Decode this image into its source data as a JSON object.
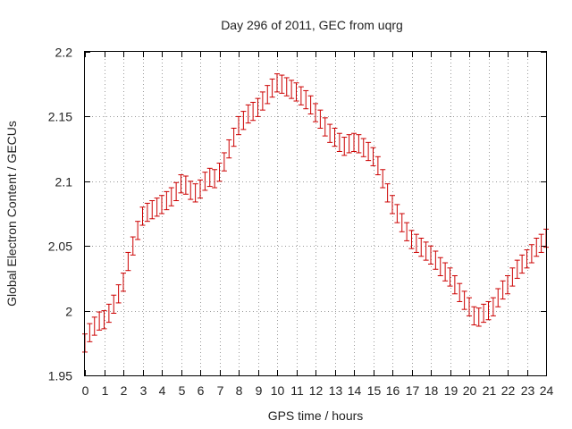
{
  "chart_data": {
    "type": "line",
    "title": "Day 296 of 2011, GEC from uqrg",
    "xlabel": "GPS time / hours",
    "ylabel": "Global Electron Content / GECUs",
    "xlim": [
      0,
      24
    ],
    "ylim": [
      1.95,
      2.2
    ],
    "x_ticks": [
      "0",
      "1",
      "2",
      "3",
      "4",
      "5",
      "6",
      "7",
      "8",
      "9",
      "10",
      "11",
      "12",
      "13",
      "14",
      "15",
      "16",
      "17",
      "18",
      "19",
      "20",
      "21",
      "22",
      "23",
      "24"
    ],
    "y_ticks": [
      "1.95",
      "2",
      "2.05",
      "2.1",
      "2.15",
      "2.2"
    ],
    "grid": true,
    "legend": "none",
    "color": "#cc0000",
    "error_bar": 0.007,
    "series": [
      {
        "x": [
          0,
          0.25,
          0.5,
          0.75,
          1,
          1.25,
          1.5,
          1.75,
          2,
          2.25,
          2.5,
          2.75,
          3,
          3.25,
          3.5,
          3.75,
          4,
          4.25,
          4.5,
          4.75,
          5,
          5.25,
          5.5,
          5.75,
          6,
          6.25,
          6.5,
          6.75,
          7,
          7.25,
          7.5,
          7.75,
          8,
          8.25,
          8.5,
          8.75,
          9,
          9.25,
          9.5,
          9.75,
          10,
          10.25,
          10.5,
          10.75,
          11,
          11.25,
          11.5,
          11.75,
          12,
          12.25,
          12.5,
          12.75,
          13,
          13.25,
          13.5,
          13.75,
          14,
          14.25,
          14.5,
          14.75,
          15,
          15.25,
          15.5,
          15.75,
          16,
          16.25,
          16.5,
          16.75,
          17,
          17.25,
          17.5,
          17.75,
          18,
          18.25,
          18.5,
          18.75,
          19,
          19.25,
          19.5,
          19.75,
          20,
          20.25,
          20.5,
          20.75,
          21,
          21.25,
          21.5,
          21.75,
          22,
          22.25,
          22.5,
          22.75,
          23,
          23.25,
          23.5,
          23.75,
          24
        ],
        "y": [
          1.975,
          1.983,
          1.988,
          1.992,
          1.993,
          1.998,
          2.005,
          2.013,
          2.022,
          2.038,
          2.05,
          2.062,
          2.073,
          2.076,
          2.078,
          2.08,
          2.082,
          2.085,
          2.088,
          2.092,
          2.098,
          2.097,
          2.093,
          2.091,
          2.094,
          2.1,
          2.103,
          2.102,
          2.107,
          2.115,
          2.125,
          2.134,
          2.143,
          2.147,
          2.152,
          2.154,
          2.157,
          2.162,
          2.167,
          2.172,
          2.176,
          2.175,
          2.173,
          2.171,
          2.169,
          2.166,
          2.163,
          2.159,
          2.153,
          2.148,
          2.142,
          2.137,
          2.134,
          2.13,
          2.127,
          2.129,
          2.13,
          2.129,
          2.126,
          2.123,
          2.119,
          2.112,
          2.102,
          2.091,
          2.082,
          2.075,
          2.068,
          2.061,
          2.055,
          2.052,
          2.049,
          2.046,
          2.043,
          2.039,
          2.034,
          2.03,
          2.026,
          2.02,
          2.014,
          2.008,
          2.003,
          1.996,
          1.995,
          1.998,
          2.0,
          2.003,
          2.01,
          2.016,
          2.02,
          2.026,
          2.032,
          2.036,
          2.04,
          2.044,
          2.049,
          2.052,
          2.056
        ]
      }
    ]
  }
}
